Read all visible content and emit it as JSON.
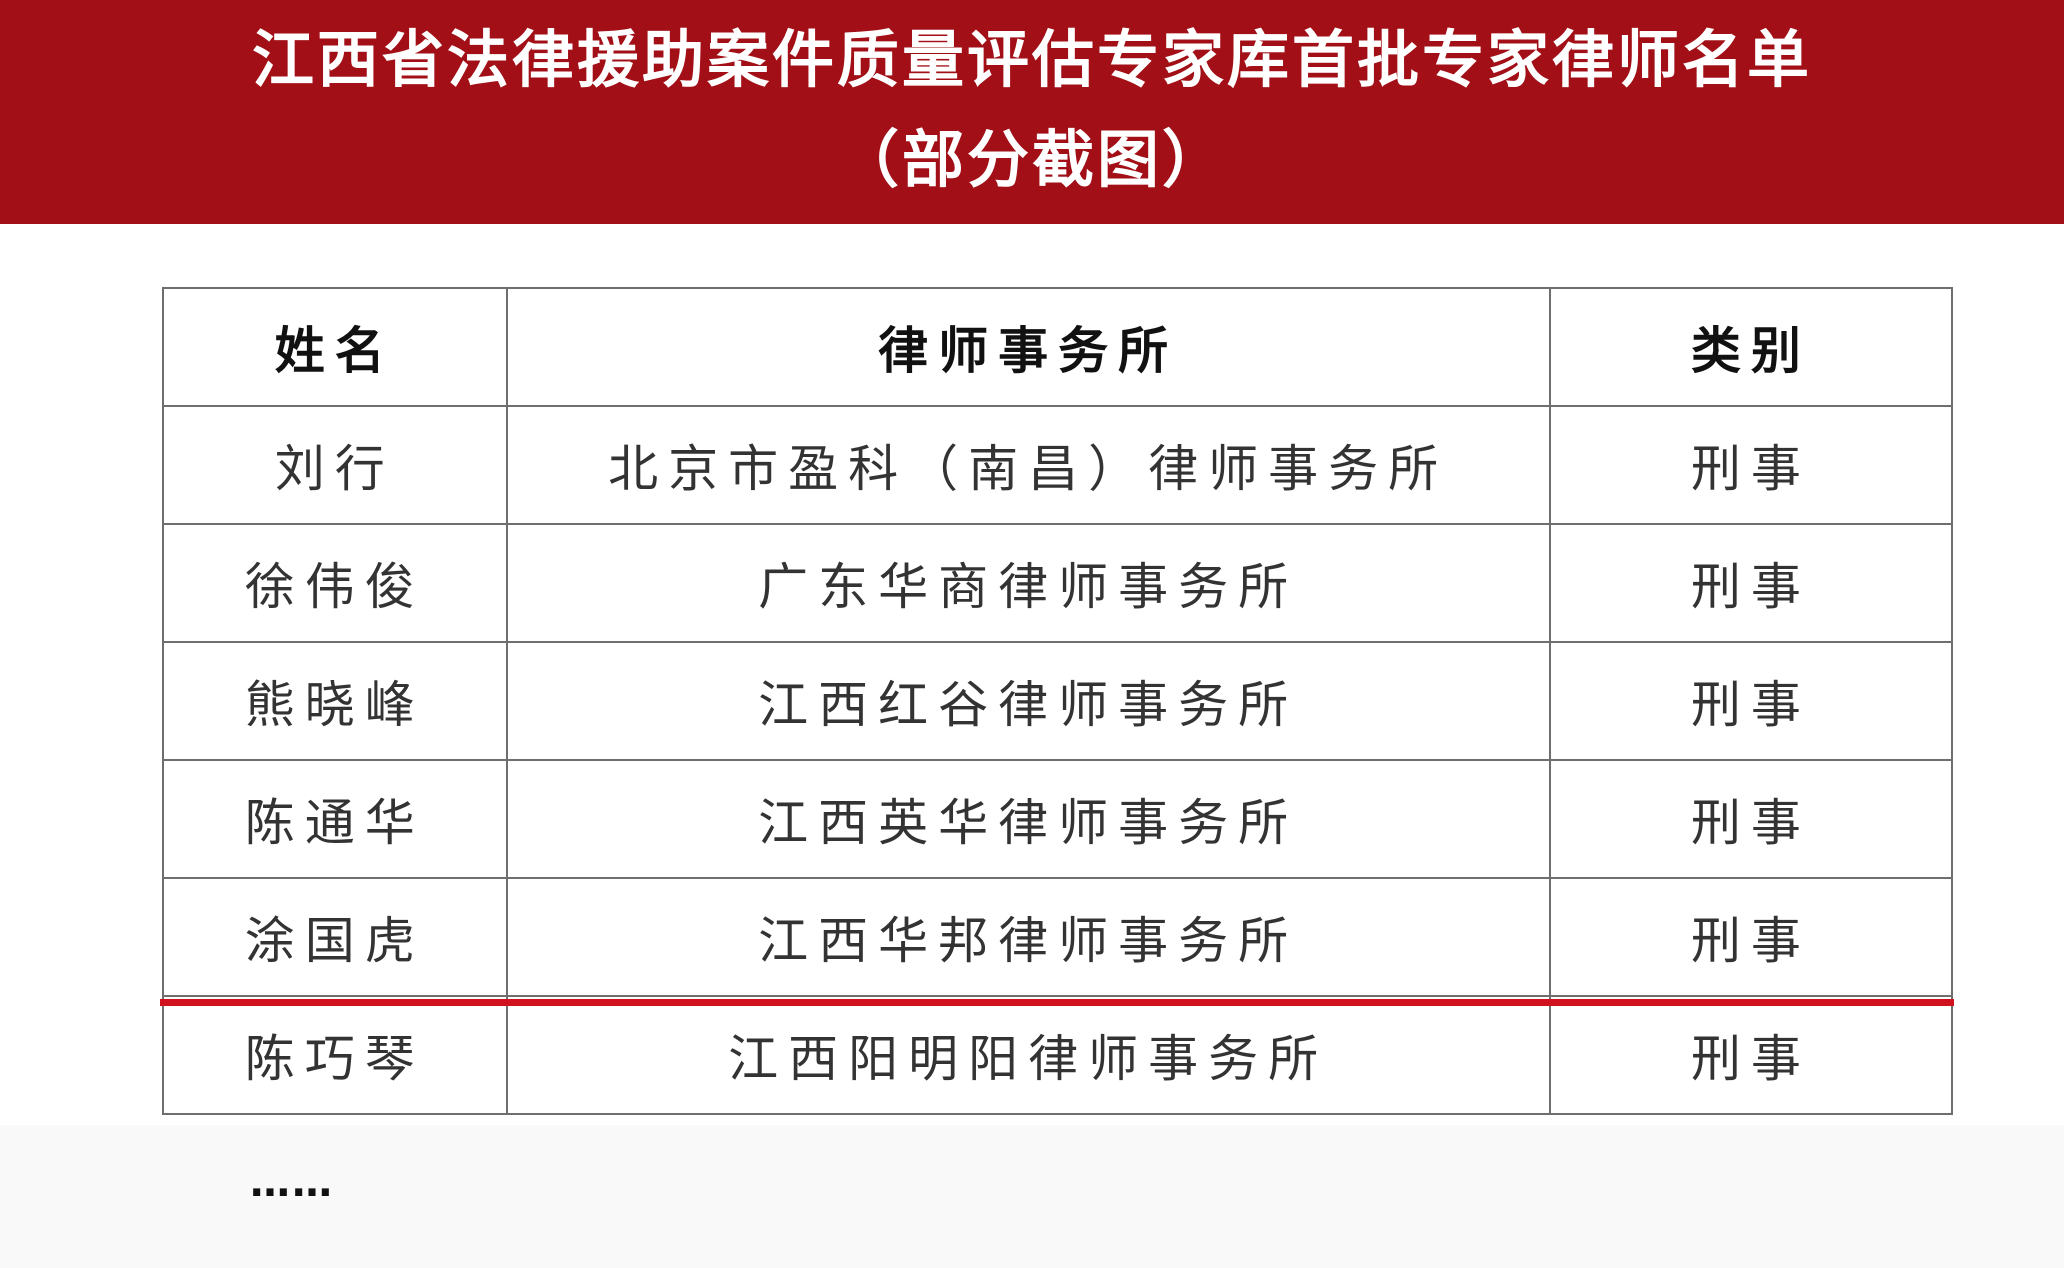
{
  "header": {
    "title": "江西省法律援助案件质量评估专家库首批专家律师名单",
    "subtitle": "（部分截图）",
    "background_color": "#a20f17"
  },
  "table": {
    "columns": [
      "姓名",
      "律师事务所",
      "类别"
    ],
    "rows": [
      [
        "刘行",
        "北京市盈科（南昌）律师事务所",
        "刑事"
      ],
      [
        "徐伟俊",
        "广东华商律师事务所",
        "刑事"
      ],
      [
        "熊晓峰",
        "江西红谷律师事务所",
        "刑事"
      ],
      [
        "陈通华",
        "江西英华律师事务所",
        "刑事"
      ],
      [
        "涂国虎",
        "江西华邦律师事务所",
        "刑事"
      ],
      [
        "陈巧琴",
        "江西阳明阳律师事务所",
        "刑事"
      ]
    ],
    "highlight_line_color": "#d0121f"
  },
  "ellipsis": "……"
}
